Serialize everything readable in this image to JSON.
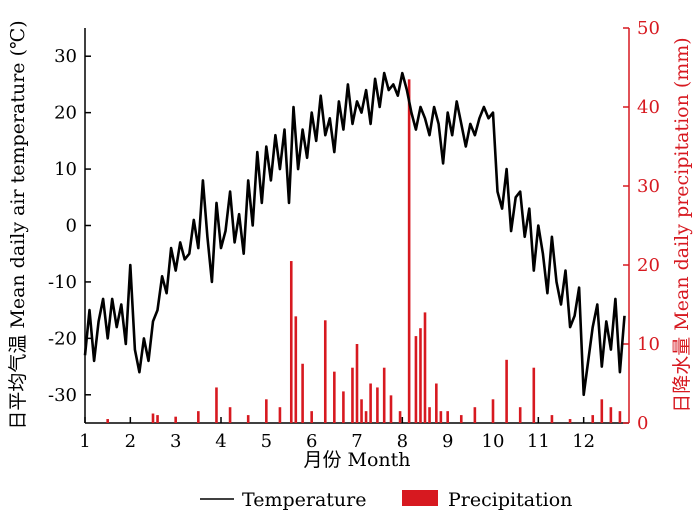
{
  "chart_data": {
    "type": "line",
    "title": "",
    "xlabel": "月份 Month",
    "ylabel_left": "日平均气温 Mean daily air temperature (℃)",
    "ylabel_right": "日降水量 Mean daily precipitation (mm)",
    "x_range": [
      1,
      13
    ],
    "x_ticks": [
      1,
      2,
      3,
      4,
      5,
      6,
      7,
      8,
      9,
      10,
      11,
      12
    ],
    "ylim_left": [
      -35,
      35
    ],
    "yticks_left": [
      -30,
      -20,
      -10,
      0,
      10,
      20,
      30
    ],
    "ylim_right": [
      0,
      50
    ],
    "yticks_right": [
      0,
      10,
      20,
      30,
      40,
      50
    ],
    "grid": false,
    "legend_position": "bottom-center",
    "colors": {
      "temperature": "#000000",
      "precipitation": "#d71920"
    },
    "series": [
      {
        "name": "Temperature",
        "type": "line",
        "axis": "left",
        "x": [
          1.0,
          1.1,
          1.2,
          1.3,
          1.4,
          1.5,
          1.6,
          1.7,
          1.8,
          1.9,
          2.0,
          2.1,
          2.2,
          2.3,
          2.4,
          2.5,
          2.6,
          2.7,
          2.8,
          2.9,
          3.0,
          3.1,
          3.2,
          3.3,
          3.4,
          3.5,
          3.6,
          3.7,
          3.8,
          3.9,
          4.0,
          4.1,
          4.2,
          4.3,
          4.4,
          4.5,
          4.6,
          4.7,
          4.8,
          4.9,
          5.0,
          5.1,
          5.2,
          5.3,
          5.4,
          5.5,
          5.6,
          5.7,
          5.8,
          5.9,
          6.0,
          6.1,
          6.2,
          6.3,
          6.4,
          6.5,
          6.6,
          6.7,
          6.8,
          6.9,
          7.0,
          7.1,
          7.2,
          7.3,
          7.4,
          7.5,
          7.6,
          7.7,
          7.8,
          7.9,
          8.0,
          8.1,
          8.2,
          8.3,
          8.4,
          8.5,
          8.6,
          8.7,
          8.8,
          8.9,
          9.0,
          9.1,
          9.2,
          9.3,
          9.4,
          9.5,
          9.6,
          9.7,
          9.8,
          9.9,
          10.0,
          10.1,
          10.2,
          10.3,
          10.4,
          10.5,
          10.6,
          10.7,
          10.8,
          10.9,
          11.0,
          11.1,
          11.2,
          11.3,
          11.4,
          11.5,
          11.6,
          11.7,
          11.8,
          11.9,
          12.0,
          12.1,
          12.2,
          12.3,
          12.4,
          12.5,
          12.6,
          12.7,
          12.8,
          12.9
        ],
        "values": [
          -23,
          -15,
          -24,
          -17,
          -13,
          -20,
          -13,
          -18,
          -14,
          -21,
          -7,
          -22,
          -26,
          -20,
          -24,
          -17,
          -15,
          -9,
          -12,
          -4,
          -8,
          -3,
          -6,
          -5,
          1,
          -4,
          8,
          -2,
          -10,
          4,
          -4,
          -1,
          6,
          -3,
          2,
          -5,
          8,
          0,
          13,
          4,
          14,
          8,
          16,
          10,
          17,
          4,
          21,
          10,
          17,
          12,
          20,
          15,
          23,
          16,
          19,
          13,
          22,
          17,
          25,
          18,
          22,
          20,
          24,
          18,
          26,
          21,
          27,
          24,
          25,
          23,
          27,
          24,
          20,
          17,
          21,
          19,
          16,
          21,
          18,
          11,
          20,
          16,
          22,
          18,
          14,
          18,
          16,
          19,
          21,
          19,
          20,
          6,
          3,
          10,
          -1,
          5,
          6,
          -2,
          3,
          -8,
          0,
          -5,
          -12,
          -2,
          -10,
          -14,
          -8,
          -18,
          -16,
          -11,
          -30,
          -24,
          -18,
          -14,
          -25,
          -17,
          -22,
          -13,
          -26,
          -16
        ]
      },
      {
        "name": "Precipitation",
        "type": "bar",
        "axis": "right",
        "x": [
          1.5,
          2.5,
          2.6,
          3.0,
          3.5,
          3.9,
          4.2,
          4.6,
          5.0,
          5.3,
          5.55,
          5.65,
          5.8,
          6.0,
          6.3,
          6.5,
          6.7,
          6.9,
          7.0,
          7.1,
          7.2,
          7.3,
          7.45,
          7.6,
          7.75,
          7.95,
          8.15,
          8.3,
          8.4,
          8.5,
          8.6,
          8.75,
          8.85,
          9.0,
          9.3,
          9.6,
          10.0,
          10.3,
          10.6,
          10.9,
          11.3,
          11.7,
          12.2,
          12.4,
          12.6,
          12.8
        ],
        "values": [
          0.5,
          1.2,
          1.0,
          0.8,
          1.5,
          4.5,
          2.0,
          1.0,
          3.0,
          2.0,
          20.5,
          13.5,
          7.5,
          1.5,
          13.0,
          6.5,
          4.0,
          7.0,
          10.0,
          3.0,
          1.5,
          5.0,
          4.5,
          7.0,
          3.5,
          1.5,
          43.5,
          11.0,
          12.0,
          14.0,
          2.0,
          5.0,
          1.5,
          1.5,
          1.0,
          2.0,
          3.0,
          8.0,
          2.0,
          7.0,
          1.0,
          0.5,
          1.0,
          3.0,
          2.0,
          1.5
        ]
      }
    ]
  }
}
